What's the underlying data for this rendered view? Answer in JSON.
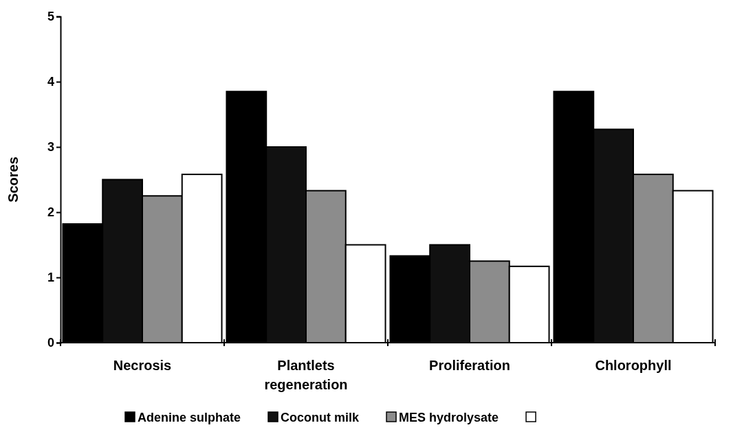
{
  "chart_data": {
    "type": "bar",
    "ylabel": "Scores",
    "categories": [
      "Necrosis",
      "Plantlets regeneration",
      "Proliferation",
      "Chlorophyll"
    ],
    "series": [
      {
        "name": "Adenine sulphate",
        "color": "#000000",
        "values": [
          1.82,
          3.85,
          1.33,
          3.85
        ]
      },
      {
        "name": "Coconut milk",
        "color": "#111111",
        "values": [
          2.5,
          3.0,
          1.5,
          3.27
        ]
      },
      {
        "name": "MES hydrolysate",
        "color": "#8c8c8c",
        "values": [
          2.25,
          2.33,
          1.25,
          2.58
        ]
      },
      {
        "color": "#ffffff",
        "values": [
          2.58,
          1.5,
          1.17,
          2.33
        ]
      }
    ],
    "ylim": [
      0,
      5
    ],
    "yticks": [
      0,
      1,
      2,
      3,
      4,
      5
    ],
    "grid": false,
    "legend": "bottom"
  }
}
